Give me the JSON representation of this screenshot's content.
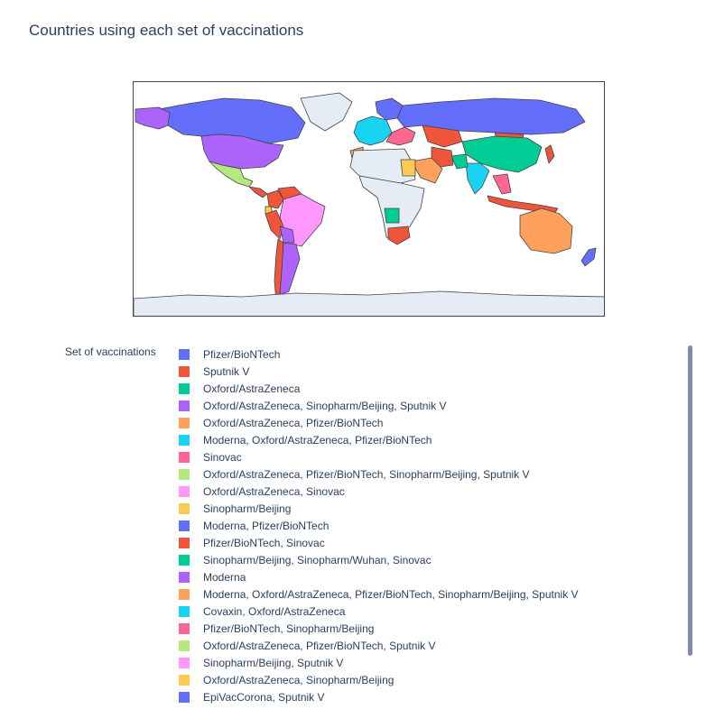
{
  "title": "Countries using each set of vaccinations",
  "legend": {
    "title": "Set of vaccinations",
    "items": [
      {
        "label": "Pfizer/BioNTech",
        "color": "#636efa"
      },
      {
        "label": "Sputnik V",
        "color": "#ef553b"
      },
      {
        "label": "Oxford/AstraZeneca",
        "color": "#00cc96"
      },
      {
        "label": "Oxford/AstraZeneca, Sinopharm/Beijing, Sputnik V",
        "color": "#ab63fa"
      },
      {
        "label": "Oxford/AstraZeneca, Pfizer/BioNTech",
        "color": "#ffa15a"
      },
      {
        "label": "Moderna, Oxford/AstraZeneca, Pfizer/BioNTech",
        "color": "#19d3f3"
      },
      {
        "label": "Sinovac",
        "color": "#ff6692"
      },
      {
        "label": "Oxford/AstraZeneca, Pfizer/BioNTech, Sinopharm/Beijing, Sputnik V",
        "color": "#b6e880"
      },
      {
        "label": "Oxford/AstraZeneca, Sinovac",
        "color": "#ff97ff"
      },
      {
        "label": "Sinopharm/Beijing",
        "color": "#fecb52"
      },
      {
        "label": "Moderna, Pfizer/BioNTech",
        "color": "#636efa"
      },
      {
        "label": "Pfizer/BioNTech, Sinovac",
        "color": "#ef553b"
      },
      {
        "label": "Sinopharm/Beijing, Sinopharm/Wuhan, Sinovac",
        "color": "#00cc96"
      },
      {
        "label": "Moderna",
        "color": "#ab63fa"
      },
      {
        "label": "Moderna, Oxford/AstraZeneca, Pfizer/BioNTech, Sinopharm/Beijing, Sputnik V",
        "color": "#ffa15a"
      },
      {
        "label": "Covaxin, Oxford/AstraZeneca",
        "color": "#19d3f3"
      },
      {
        "label": "Pfizer/BioNTech, Sinopharm/Beijing",
        "color": "#ff6692"
      },
      {
        "label": "Oxford/AstraZeneca, Pfizer/BioNTech, Sputnik V",
        "color": "#b6e880"
      },
      {
        "label": "Sinopharm/Beijing, Sputnik V",
        "color": "#ff97ff"
      },
      {
        "label": "Oxford/AstraZeneca, Sinopharm/Beijing",
        "color": "#fecb52"
      },
      {
        "label": "EpiVacCorona, Sputnik V",
        "color": "#636efa"
      }
    ]
  },
  "map": {
    "land_color": "#e5ecf6",
    "border_color": "#444444",
    "regions": [
      {
        "name": "Canada",
        "color": "#636efa"
      },
      {
        "name": "Alaska",
        "color": "#ab63fa"
      },
      {
        "name": "Greenland",
        "color": "#e5ecf6"
      },
      {
        "name": "United States",
        "color": "#ab63fa"
      },
      {
        "name": "Mexico",
        "color": "#b6e880"
      },
      {
        "name": "Central America",
        "color": "#ef553b"
      },
      {
        "name": "Colombia",
        "color": "#ef553b"
      },
      {
        "name": "Venezuela",
        "color": "#ef553b"
      },
      {
        "name": "Ecuador",
        "color": "#fecb52"
      },
      {
        "name": "Peru",
        "color": "#ef553b"
      },
      {
        "name": "Brazil",
        "color": "#ff97ff"
      },
      {
        "name": "Bolivia",
        "color": "#ab63fa"
      },
      {
        "name": "Chile",
        "color": "#ef553b"
      },
      {
        "name": "Argentina",
        "color": "#ab63fa"
      },
      {
        "name": "Western Europe",
        "color": "#19d3f3"
      },
      {
        "name": "Scandinavia",
        "color": "#636efa"
      },
      {
        "name": "Eastern Europe",
        "color": "#ff6692"
      },
      {
        "name": "Russia",
        "color": "#636efa"
      },
      {
        "name": "Kazakhstan",
        "color": "#ef553b"
      },
      {
        "name": "Mongolia",
        "color": "#ef553b"
      },
      {
        "name": "China",
        "color": "#00cc96"
      },
      {
        "name": "Japan",
        "color": "#ef553b"
      },
      {
        "name": "India",
        "color": "#19d3f3"
      },
      {
        "name": "Pakistan",
        "color": "#00cc96"
      },
      {
        "name": "Iran",
        "color": "#ef553b"
      },
      {
        "name": "Arabian Peninsula",
        "color": "#ffa15a"
      },
      {
        "name": "Morocco",
        "color": "#ffa15a"
      },
      {
        "name": "North Africa",
        "color": "#e5ecf6"
      },
      {
        "name": "Egypt",
        "color": "#fecb52"
      },
      {
        "name": "Sub-Saharan Africa",
        "color": "#e5ecf6"
      },
      {
        "name": "Angola",
        "color": "#00cc96"
      },
      {
        "name": "South Africa",
        "color": "#ef553b"
      },
      {
        "name": "Southeast Asia",
        "color": "#ff6692"
      },
      {
        "name": "Indonesia",
        "color": "#ef553b"
      },
      {
        "name": "Australia",
        "color": "#ffa15a"
      },
      {
        "name": "New Zealand",
        "color": "#636efa"
      },
      {
        "name": "Antarctica",
        "color": "#e5ecf6"
      }
    ]
  }
}
